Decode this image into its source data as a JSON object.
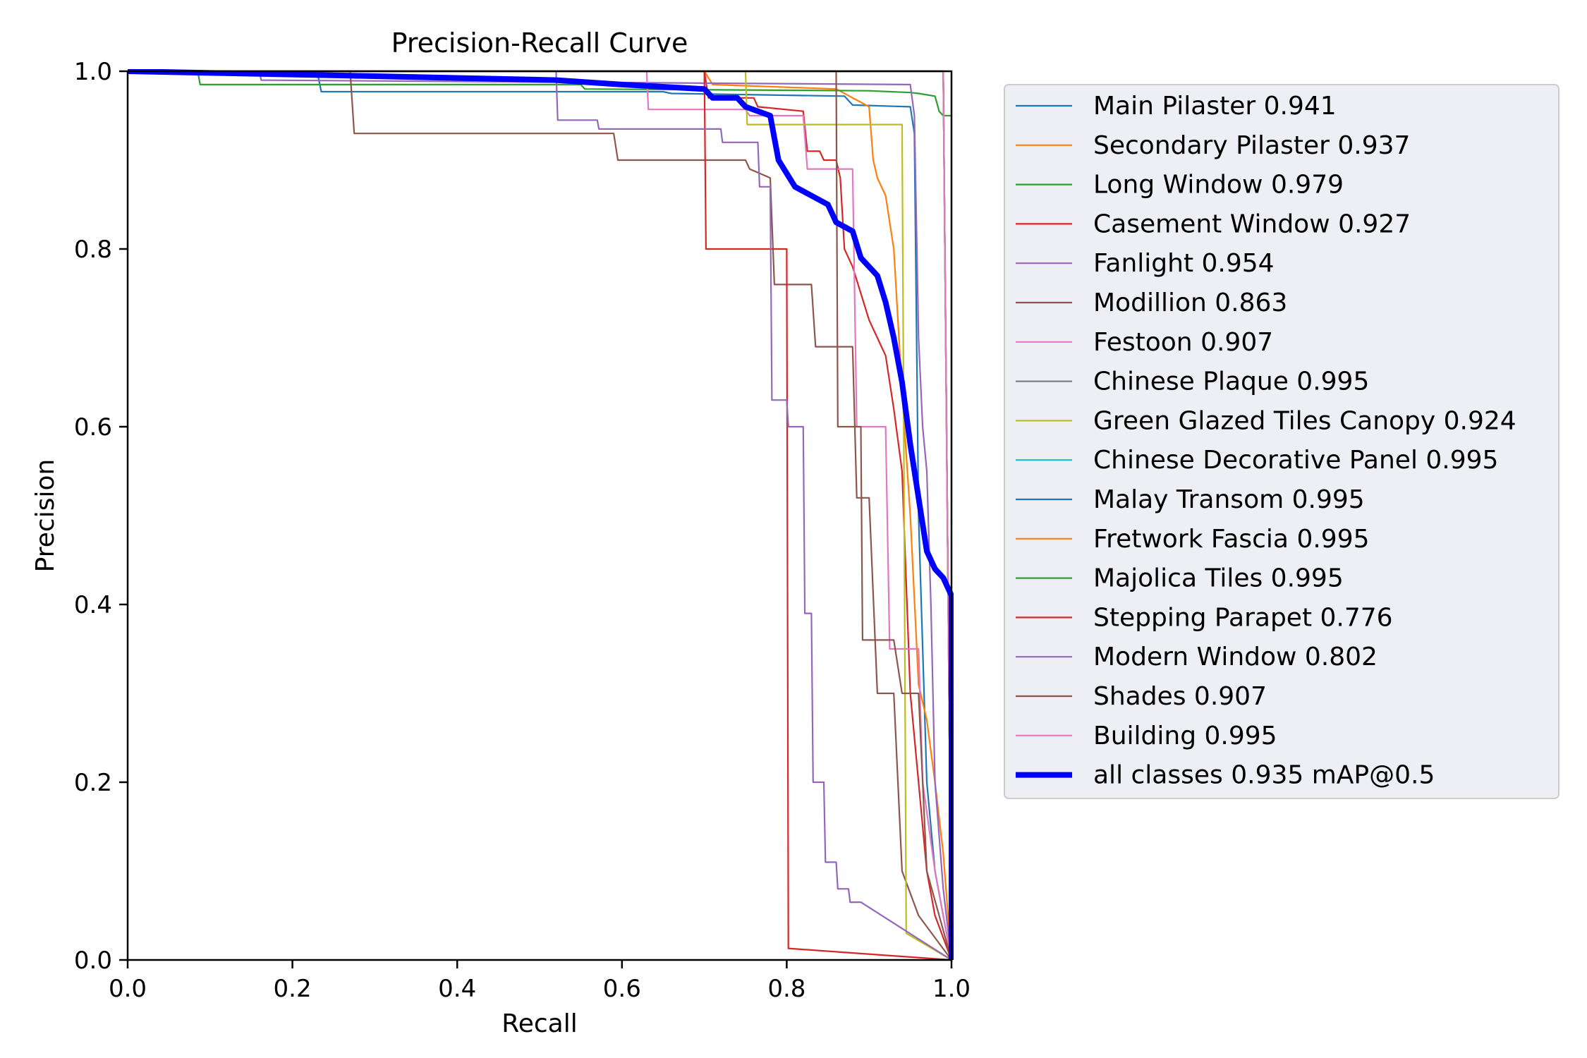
{
  "chart_data": {
    "type": "line",
    "title": "Precision-Recall Curve",
    "xlabel": "Recall",
    "ylabel": "Precision",
    "xlim": [
      0,
      1
    ],
    "ylim": [
      0,
      1
    ],
    "xticks": [
      "0.0",
      "0.2",
      "0.4",
      "0.6",
      "0.8",
      "1.0"
    ],
    "yticks": [
      "0.0",
      "0.2",
      "0.4",
      "0.6",
      "0.8",
      "1.0"
    ],
    "grid": false,
    "legend_position": "outside-right",
    "series": [
      {
        "name": "Main Pilaster 0.941",
        "color": "#1f77b4",
        "points": [
          [
            0,
            1
          ],
          [
            0.23,
            1
          ],
          [
            0.235,
            0.977
          ],
          [
            0.65,
            0.977
          ],
          [
            0.66,
            0.975
          ],
          [
            0.87,
            0.972
          ],
          [
            0.88,
            0.962
          ],
          [
            0.95,
            0.96
          ],
          [
            0.955,
            0.93
          ],
          [
            0.96,
            0.5
          ],
          [
            0.97,
            0.2
          ],
          [
            0.98,
            0.1
          ],
          [
            1,
            0
          ]
        ]
      },
      {
        "name": "Secondary Pilaster 0.937",
        "color": "#ff7f0e",
        "points": [
          [
            0,
            1
          ],
          [
            0.7,
            1
          ],
          [
            0.71,
            0.985
          ],
          [
            0.86,
            0.98
          ],
          [
            0.9,
            0.96
          ],
          [
            0.905,
            0.9
          ],
          [
            0.91,
            0.88
          ],
          [
            0.92,
            0.86
          ],
          [
            0.93,
            0.8
          ],
          [
            0.94,
            0.64
          ],
          [
            0.95,
            0.5
          ],
          [
            0.96,
            0.31
          ],
          [
            0.97,
            0.27
          ],
          [
            0.98,
            0.2
          ],
          [
            0.99,
            0.12
          ],
          [
            1,
            0
          ]
        ]
      },
      {
        "name": "Long Window 0.979",
        "color": "#2ca02c",
        "points": [
          [
            0,
            1
          ],
          [
            0.085,
            1
          ],
          [
            0.088,
            0.985
          ],
          [
            0.55,
            0.985
          ],
          [
            0.555,
            0.98
          ],
          [
            0.9,
            0.978
          ],
          [
            0.95,
            0.976
          ],
          [
            0.96,
            0.975
          ],
          [
            0.98,
            0.972
          ],
          [
            0.985,
            0.955
          ],
          [
            0.99,
            0.95
          ],
          [
            1,
            0.95
          ]
        ]
      },
      {
        "name": "Casement Window 0.927",
        "color": "#d62728",
        "points": [
          [
            0,
            1
          ],
          [
            0.7,
            1
          ],
          [
            0.705,
            0.97
          ],
          [
            0.76,
            0.97
          ],
          [
            0.765,
            0.96
          ],
          [
            0.82,
            0.955
          ],
          [
            0.825,
            0.91
          ],
          [
            0.84,
            0.91
          ],
          [
            0.845,
            0.9
          ],
          [
            0.86,
            0.9
          ],
          [
            0.865,
            0.88
          ],
          [
            0.87,
            0.8
          ],
          [
            0.88,
            0.78
          ],
          [
            0.89,
            0.75
          ],
          [
            0.9,
            0.72
          ],
          [
            0.91,
            0.7
          ],
          [
            0.92,
            0.68
          ],
          [
            0.93,
            0.62
          ],
          [
            0.94,
            0.55
          ],
          [
            0.95,
            0.3
          ],
          [
            0.97,
            0.1
          ],
          [
            0.98,
            0.05
          ],
          [
            1,
            0
          ]
        ]
      },
      {
        "name": "Fanlight 0.954",
        "color": "#9467bd",
        "points": [
          [
            0,
            1
          ],
          [
            0.16,
            1
          ],
          [
            0.162,
            0.99
          ],
          [
            0.95,
            0.985
          ],
          [
            0.955,
            0.95
          ],
          [
            0.96,
            0.7
          ],
          [
            0.965,
            0.6
          ],
          [
            0.97,
            0.55
          ],
          [
            0.975,
            0.4
          ],
          [
            0.98,
            0.2
          ],
          [
            0.99,
            0.08
          ],
          [
            1,
            0
          ]
        ]
      },
      {
        "name": "Modillion 0.863",
        "color": "#8c564b",
        "points": [
          [
            0,
            1
          ],
          [
            0.27,
            1
          ],
          [
            0.275,
            0.93
          ],
          [
            0.59,
            0.93
          ],
          [
            0.595,
            0.9
          ],
          [
            0.75,
            0.9
          ],
          [
            0.755,
            0.89
          ],
          [
            0.78,
            0.88
          ],
          [
            0.785,
            0.76
          ],
          [
            0.83,
            0.76
          ],
          [
            0.835,
            0.69
          ],
          [
            0.88,
            0.69
          ],
          [
            0.885,
            0.52
          ],
          [
            0.9,
            0.52
          ],
          [
            0.91,
            0.3
          ],
          [
            0.93,
            0.3
          ],
          [
            0.94,
            0.1
          ],
          [
            0.96,
            0.05
          ],
          [
            1,
            0
          ]
        ]
      },
      {
        "name": "Festoon 0.907",
        "color": "#e377c2",
        "points": [
          [
            0,
            1
          ],
          [
            0.63,
            1
          ],
          [
            0.632,
            0.957
          ],
          [
            0.75,
            0.957
          ],
          [
            0.755,
            0.95
          ],
          [
            0.82,
            0.95
          ],
          [
            0.825,
            0.89
          ],
          [
            0.88,
            0.89
          ],
          [
            0.885,
            0.6
          ],
          [
            0.92,
            0.6
          ],
          [
            0.925,
            0.35
          ],
          [
            0.96,
            0.35
          ],
          [
            0.965,
            0.2
          ],
          [
            0.98,
            0.1
          ],
          [
            1,
            0
          ]
        ]
      },
      {
        "name": "Chinese Plaque 0.995",
        "color": "#7f7f7f",
        "points": [
          [
            0,
            1
          ],
          [
            0.99,
            1
          ],
          [
            1,
            0
          ]
        ]
      },
      {
        "name": "Green Glazed Tiles Canopy 0.924",
        "color": "#bcbd22",
        "points": [
          [
            0,
            1
          ],
          [
            0.75,
            1
          ],
          [
            0.752,
            0.94
          ],
          [
            0.94,
            0.94
          ],
          [
            0.942,
            0.6
          ],
          [
            0.945,
            0.03
          ],
          [
            1,
            0
          ]
        ]
      },
      {
        "name": "Chinese Decorative Panel 0.995",
        "color": "#17becf",
        "points": [
          [
            0,
            1
          ],
          [
            0.99,
            1
          ],
          [
            1,
            0
          ]
        ]
      },
      {
        "name": "Malay Transom 0.995",
        "color": "#1f77b4",
        "points": [
          [
            0,
            1
          ],
          [
            0.99,
            1
          ],
          [
            1,
            0
          ]
        ]
      },
      {
        "name": "Fretwork Fascia 0.995",
        "color": "#ff7f0e",
        "points": [
          [
            0,
            1
          ],
          [
            0.99,
            1
          ],
          [
            1,
            0
          ]
        ]
      },
      {
        "name": "Majolica Tiles 0.995",
        "color": "#2ca02c",
        "points": [
          [
            0,
            1
          ],
          [
            0.99,
            1
          ],
          [
            1,
            0
          ]
        ]
      },
      {
        "name": "Stepping Parapet 0.776",
        "color": "#d62728",
        "points": [
          [
            0,
            1
          ],
          [
            0.7,
            1
          ],
          [
            0.702,
            0.8
          ],
          [
            0.8,
            0.8
          ],
          [
            0.802,
            0.013
          ],
          [
            1,
            0
          ]
        ]
      },
      {
        "name": "Modern Window 0.802",
        "color": "#9467bd",
        "points": [
          [
            0,
            1
          ],
          [
            0.52,
            1
          ],
          [
            0.522,
            0.945
          ],
          [
            0.57,
            0.945
          ],
          [
            0.572,
            0.935
          ],
          [
            0.72,
            0.935
          ],
          [
            0.722,
            0.92
          ],
          [
            0.765,
            0.92
          ],
          [
            0.767,
            0.87
          ],
          [
            0.78,
            0.87
          ],
          [
            0.782,
            0.63
          ],
          [
            0.8,
            0.63
          ],
          [
            0.802,
            0.6
          ],
          [
            0.82,
            0.6
          ],
          [
            0.822,
            0.39
          ],
          [
            0.83,
            0.39
          ],
          [
            0.832,
            0.2
          ],
          [
            0.845,
            0.2
          ],
          [
            0.847,
            0.11
          ],
          [
            0.86,
            0.11
          ],
          [
            0.862,
            0.08
          ],
          [
            0.875,
            0.08
          ],
          [
            0.877,
            0.065
          ],
          [
            0.89,
            0.065
          ],
          [
            1,
            0
          ]
        ]
      },
      {
        "name": "Shades 0.907",
        "color": "#8c564b",
        "points": [
          [
            0,
            1
          ],
          [
            0.86,
            1
          ],
          [
            0.862,
            0.6
          ],
          [
            0.89,
            0.6
          ],
          [
            0.892,
            0.36
          ],
          [
            0.93,
            0.36
          ],
          [
            0.94,
            0.3
          ],
          [
            0.96,
            0.3
          ],
          [
            0.97,
            0.1
          ],
          [
            1,
            0
          ]
        ]
      },
      {
        "name": "Building 0.995",
        "color": "#e377c2",
        "points": [
          [
            0,
            1
          ],
          [
            0.99,
            1
          ],
          [
            1,
            0
          ]
        ]
      },
      {
        "name": "all classes 0.935 mAP@0.5",
        "color": "#0000ff",
        "bold": true,
        "points": [
          [
            0,
            1
          ],
          [
            0.27,
            0.995
          ],
          [
            0.52,
            0.99
          ],
          [
            0.6,
            0.985
          ],
          [
            0.7,
            0.98
          ],
          [
            0.71,
            0.97
          ],
          [
            0.74,
            0.97
          ],
          [
            0.75,
            0.96
          ],
          [
            0.78,
            0.95
          ],
          [
            0.79,
            0.9
          ],
          [
            0.81,
            0.87
          ],
          [
            0.83,
            0.86
          ],
          [
            0.85,
            0.85
          ],
          [
            0.86,
            0.83
          ],
          [
            0.88,
            0.82
          ],
          [
            0.89,
            0.79
          ],
          [
            0.91,
            0.77
          ],
          [
            0.92,
            0.74
          ],
          [
            0.93,
            0.7
          ],
          [
            0.94,
            0.65
          ],
          [
            0.95,
            0.58
          ],
          [
            0.96,
            0.52
          ],
          [
            0.97,
            0.46
          ],
          [
            0.98,
            0.44
          ],
          [
            0.99,
            0.43
          ],
          [
            1,
            0.41
          ],
          [
            1,
            0
          ]
        ]
      }
    ]
  }
}
